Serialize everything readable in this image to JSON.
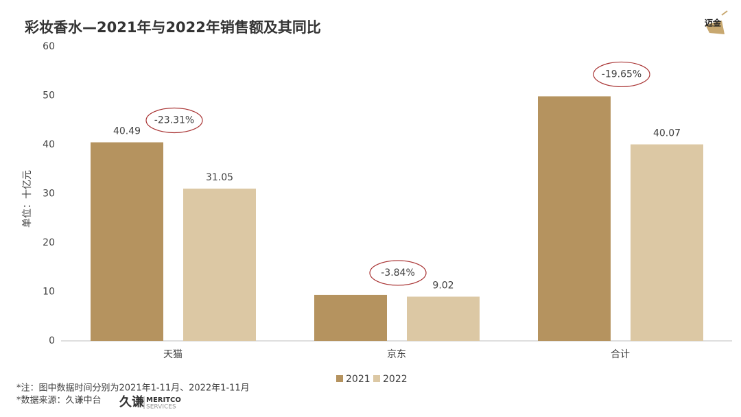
{
  "chart_data": {
    "type": "bar",
    "title": "彩妆香水—2021年与2022年销售额及其同比",
    "y_label": "单位：十亿元",
    "categories": [
      "天猫",
      "京东",
      "合计"
    ],
    "series": [
      {
        "name": "2021",
        "color": "#b5935f",
        "values": [
          40.49,
          9.38,
          49.87
        ],
        "value_labels": [
          "40.49",
          null,
          null
        ]
      },
      {
        "name": "2022",
        "color": "#dcc8a4",
        "values": [
          31.05,
          9.02,
          40.07
        ],
        "value_labels": [
          "31.05",
          "9.02",
          "40.07"
        ]
      }
    ],
    "changes": [
      "-23.31%",
      "-3.84%",
      "-19.65%"
    ],
    "ylim": [
      0,
      60
    ],
    "yticks": [
      0,
      10,
      20,
      30,
      40,
      50,
      60
    ],
    "notes": [
      "*注：图中数据时间分别为2021年1-11月、2022年1-11月",
      "*数据来源：久谦中台"
    ],
    "brand": {
      "logo": "迈金",
      "name_cn": "久谦",
      "name_en": "MERITCO",
      "sub_en": "SERVICES"
    }
  }
}
